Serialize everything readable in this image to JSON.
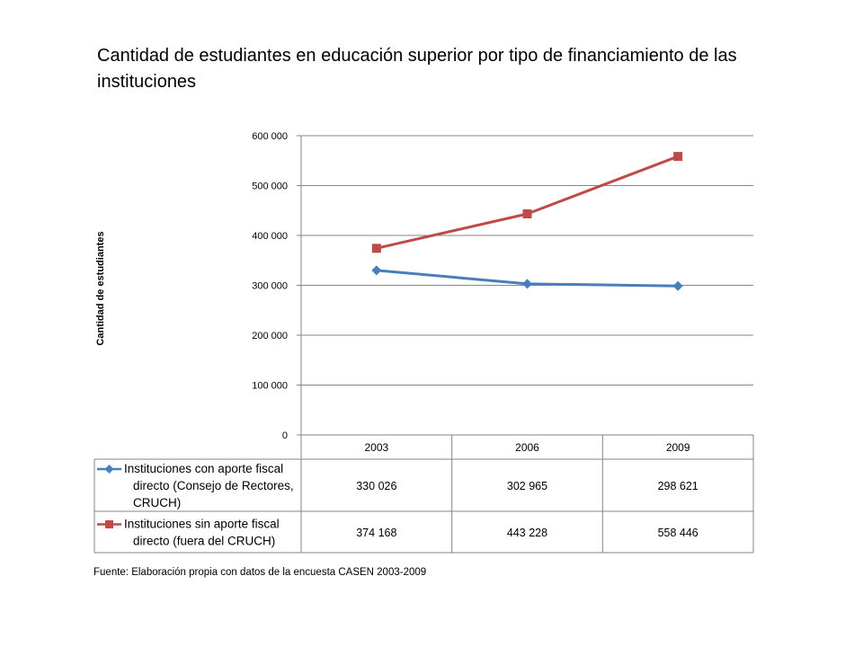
{
  "chart_data": {
    "type": "line",
    "title": "Cantidad de estudiantes en educación superior por tipo de financiamiento de las instituciones",
    "xlabel": "",
    "ylabel": "Cantidad de estudiantes",
    "categories": [
      "2003",
      "2006",
      "2009"
    ],
    "ylim": [
      0,
      600000
    ],
    "yticks": [
      0,
      100000,
      200000,
      300000,
      400000,
      500000,
      600000
    ],
    "ytick_labels": [
      "0",
      "100 000",
      "200 000",
      "300 000",
      "400 000",
      "500 000",
      "600 000"
    ],
    "grid": "horizontal",
    "legend_placement": "data table below chart",
    "series": [
      {
        "name": "Instituciones con aporte fiscal directo (Consejo de Rectores, CRUCH)",
        "legend_lines": [
          "Instituciones con aporte fiscal",
          "directo (Consejo de Rectores,",
          "CRUCH)"
        ],
        "values": [
          330026,
          302965,
          298621
        ],
        "value_labels": [
          "330 026",
          "302 965",
          "298 621"
        ],
        "color": "#4a7ebb",
        "marker": "diamond"
      },
      {
        "name": "Instituciones sin aporte fiscal directo (fuera del CRUCH)",
        "legend_lines": [
          "Instituciones sin aporte fiscal",
          "directo (fuera del CRUCH)"
        ],
        "values": [
          374168,
          443228,
          558446
        ],
        "value_labels": [
          "374 168",
          "443 228",
          "558 446"
        ],
        "color": "#be4b48",
        "marker": "square"
      }
    ]
  },
  "source": "Fuente: Elaboración propia con datos de la encuesta CASEN 2003-2009"
}
